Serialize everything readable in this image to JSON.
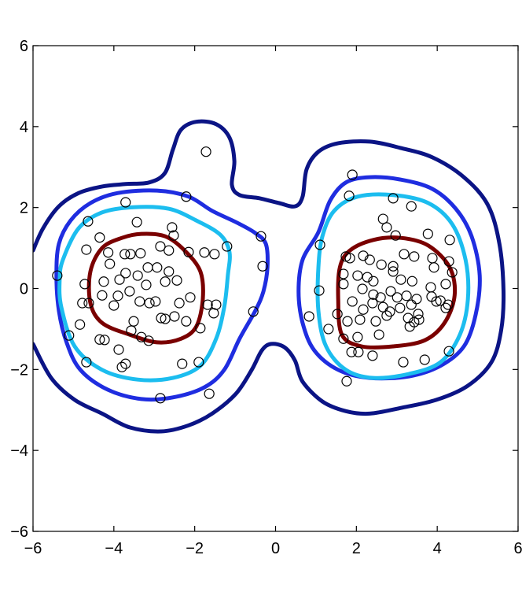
{
  "chart_data": {
    "type": "contour",
    "xlim": [
      -6,
      6
    ],
    "ylim": [
      -6,
      6
    ],
    "xticks": [
      {
        "value": -6,
        "label": "−6"
      },
      {
        "value": -4,
        "label": "−4"
      },
      {
        "value": -2,
        "label": "−2"
      },
      0,
      2,
      4,
      6
    ],
    "yticks": [
      {
        "value": -6,
        "label": "−6"
      },
      {
        "value": -4,
        "label": "−4"
      },
      {
        "value": -2,
        "label": "−2"
      },
      0,
      2,
      4,
      6
    ],
    "contours": [
      {
        "color": "#0b1485",
        "closed": false,
        "x": [
          -6.0,
          -5.75,
          -5.36,
          -4.87,
          -4.29,
          -3.71,
          -3.13,
          -2.74,
          -2.54,
          -2.34,
          -1.96,
          -1.47,
          -1.14,
          -1.02,
          -1.08,
          -0.89,
          -0.4,
          0.09,
          0.48,
          0.67,
          0.77,
          1.06,
          1.55,
          2.33,
          3.1,
          3.88,
          4.66,
          5.25,
          5.54,
          5.64,
          5.58,
          5.34,
          4.76,
          3.98,
          3.1,
          2.33,
          1.74,
          1.16,
          0.67,
          0.48,
          0.22,
          -0.11,
          -0.34,
          -0.59,
          -0.98,
          -1.57,
          -2.15,
          -2.83,
          -3.61,
          -4.29,
          -4.97,
          -5.55,
          -6.0
        ],
        "y": [
          0.94,
          1.49,
          2.03,
          2.36,
          2.52,
          2.58,
          2.62,
          2.85,
          3.43,
          3.92,
          4.12,
          4.06,
          3.73,
          3.15,
          2.56,
          2.31,
          2.23,
          2.11,
          2.03,
          2.27,
          2.95,
          3.38,
          3.59,
          3.63,
          3.47,
          3.24,
          2.75,
          2.07,
          1.1,
          -0.07,
          -1.04,
          -1.82,
          -2.4,
          -2.75,
          -2.95,
          -3.09,
          -3.03,
          -2.79,
          -2.3,
          -1.78,
          -1.45,
          -1.37,
          -1.53,
          -2.01,
          -2.6,
          -3.09,
          -3.38,
          -3.53,
          -3.43,
          -3.09,
          -2.75,
          -2.21,
          -1.37
        ]
      },
      {
        "color": "#1f2de0",
        "closed": true,
        "x": [
          -5.36,
          -5.07,
          -4.58,
          -3.9,
          -2.93,
          -2.15,
          -1.57,
          -0.98,
          -0.5,
          -0.24,
          -0.2,
          -0.3,
          -0.5,
          -0.89,
          -1.27,
          -1.76,
          -2.54,
          -3.32,
          -4.15,
          -4.83,
          -5.17,
          -5.36,
          -5.42,
          null,
          1.06,
          1.35,
          1.74,
          2.33,
          3.1,
          3.88,
          4.46,
          4.85,
          5.05,
          4.95,
          4.66,
          4.08,
          3.3,
          2.33,
          1.55,
          0.96,
          0.67,
          0.57,
          0.67
        ],
        "y": [
          1.1,
          1.68,
          2.11,
          2.36,
          2.42,
          2.27,
          1.92,
          1.64,
          1.37,
          1.1,
          0.52,
          -0.07,
          -0.55,
          -1.24,
          -2.01,
          -2.44,
          -2.69,
          -2.73,
          -2.5,
          -2.01,
          -1.33,
          -0.55,
          0.32,
          null,
          1.39,
          2.17,
          2.62,
          2.75,
          2.69,
          2.46,
          1.97,
          1.29,
          0.32,
          -0.65,
          -1.43,
          -1.91,
          -2.17,
          -2.21,
          -2.01,
          -1.53,
          -0.85,
          -0.07,
          0.71
        ]
      },
      {
        "color": "#1cbdef",
        "closed": true,
        "x": [
          -5.26,
          -4.87,
          -4.29,
          -3.51,
          -2.64,
          -1.96,
          -1.37,
          -1.14,
          -1.18,
          -1.27,
          -1.47,
          -1.86,
          -2.54,
          -3.41,
          -4.29,
          -4.97,
          -5.3,
          -5.34,
          null,
          1.16,
          1.45,
          2.03,
          2.91,
          3.78,
          4.37,
          4.7,
          4.76,
          4.56,
          4.08,
          3.3,
          2.42,
          1.74,
          1.25,
          1.06,
          1.06
        ],
        "y": [
          0.71,
          1.49,
          1.88,
          2.01,
          1.97,
          1.68,
          1.33,
          0.9,
          0.32,
          -0.46,
          -1.24,
          -1.91,
          -2.21,
          -2.25,
          -2.01,
          -1.43,
          -0.46,
          0.22,
          null,
          1.29,
          1.92,
          2.27,
          2.31,
          2.11,
          1.59,
          0.71,
          -0.26,
          -1.14,
          -1.82,
          -2.11,
          -2.21,
          -2.01,
          -1.43,
          -0.55,
          0.52
        ]
      },
      {
        "color": "#7a0000",
        "closed": true,
        "x": [
          -4.58,
          -4.29,
          -3.8,
          -3.32,
          -2.73,
          -2.25,
          -1.86,
          -1.8,
          -1.96,
          -2.34,
          -2.93,
          -3.61,
          -4.29,
          -4.58,
          null,
          1.59,
          1.84,
          2.42,
          3.1,
          3.78,
          4.31,
          4.43,
          4.18,
          3.69,
          2.91,
          2.13,
          1.64,
          1.55
        ],
        "y": [
          0.42,
          1.0,
          1.25,
          1.35,
          1.29,
          0.94,
          0.42,
          -0.26,
          -0.94,
          -1.24,
          -1.33,
          -1.14,
          -0.85,
          -0.36,
          null,
          0.52,
          0.94,
          1.2,
          1.25,
          1.06,
          0.52,
          -0.17,
          -0.85,
          -1.28,
          -1.43,
          -1.43,
          -1.14,
          -0.26
        ]
      }
    ],
    "points": {
      "color": "#000000",
      "x": [
        -1.72,
        -2.21,
        -3.71,
        -4.64,
        -4.35,
        -3.43,
        -2.56,
        -2.52,
        -4.68,
        -4.14,
        -3.73,
        -3.59,
        -3.34,
        -2.85,
        -2.64,
        -2.15,
        -1.76,
        -1.51,
        -1.2,
        -0.36,
        -0.32,
        -0.55,
        -5.4,
        -4.72,
        -4.1,
        -3.71,
        -4.25,
        -3.86,
        -3.41,
        -3.16,
        -2.93,
        -2.64,
        -2.44,
        -2.73,
        -3.2,
        -3.61,
        -3.9,
        -4.29,
        -4.62,
        -4.78,
        -4.0,
        -3.36,
        -2.97,
        -2.11,
        -2.38,
        -1.68,
        -1.47,
        -1.53,
        -1.86,
        -2.21,
        -2.5,
        -2.83,
        -3.12,
        -3.51,
        -3.57,
        -3.32,
        -3.14,
        -2.73,
        -4.84,
        -5.11,
        -4.35,
        -4.23,
        -3.88,
        -3.71,
        -3.8,
        -4.68,
        -2.31,
        -1.9,
        -2.85,
        -1.64,
        1.9,
        1.82,
        2.91,
        2.66,
        3.36,
        2.75,
        2.97,
        3.77,
        4.31,
        1.1,
        1.74,
        1.84,
        2.17,
        2.33,
        2.62,
        2.91,
        3.18,
        3.43,
        3.88,
        4.29,
        3.92,
        4.37,
        1.68,
        2.03,
        2.27,
        2.42,
        2.91,
        3.1,
        3.38,
        3.84,
        4.21,
        1.08,
        1.68,
        2.15,
        2.42,
        2.6,
        2.85,
        3.01,
        3.24,
        3.49,
        3.86,
        4.08,
        4.27,
        1.9,
        2.17,
        2.4,
        2.66,
        2.83,
        3.08,
        3.36,
        3.53,
        3.98,
        4.21,
        0.83,
        1.53,
        1.78,
        2.09,
        2.48,
        2.75,
        3.28,
        3.43,
        3.55,
        3.32,
        1.31,
        1.68,
        2.03,
        2.56,
        1.88,
        2.05,
        2.4,
        3.16,
        3.69,
        4.29,
        1.76
      ],
      "y": [
        3.38,
        2.27,
        2.13,
        1.66,
        1.26,
        1.64,
        1.51,
        1.31,
        0.96,
        0.89,
        0.85,
        0.85,
        0.87,
        1.04,
        0.94,
        0.9,
        0.89,
        0.85,
        1.04,
        1.29,
        0.55,
        -0.57,
        0.32,
        0.11,
        0.61,
        0.38,
        0.17,
        0.22,
        0.32,
        0.52,
        0.52,
        0.42,
        0.2,
        0.17,
        0.09,
        -0.07,
        -0.18,
        -0.17,
        -0.36,
        -0.36,
        -0.42,
        -0.32,
        -0.32,
        -0.22,
        -0.36,
        -0.4,
        -0.4,
        -0.61,
        -0.98,
        -0.81,
        -0.69,
        -0.73,
        -0.36,
        -0.81,
        -1.04,
        -1.2,
        -1.29,
        -0.75,
        -0.89,
        -1.16,
        -1.26,
        -1.27,
        -1.51,
        -1.86,
        -1.94,
        -1.82,
        -1.86,
        -1.82,
        -2.71,
        -2.6,
        2.81,
        2.29,
        2.23,
        1.72,
        2.03,
        1.51,
        1.31,
        1.35,
        1.2,
        1.08,
        0.79,
        0.75,
        0.81,
        0.71,
        0.59,
        0.55,
        0.85,
        0.79,
        0.75,
        0.67,
        0.52,
        0.4,
        0.36,
        0.32,
        0.28,
        0.18,
        0.42,
        0.22,
        0.18,
        0.03,
        0.11,
        -0.05,
        0.11,
        -0.01,
        -0.15,
        -0.22,
        -0.07,
        -0.22,
        -0.18,
        -0.26,
        -0.2,
        -0.3,
        -0.4,
        -0.32,
        -0.52,
        -0.36,
        -0.46,
        -0.57,
        -0.48,
        -0.4,
        -0.63,
        -0.32,
        -0.48,
        -0.69,
        -0.63,
        -0.81,
        -0.77,
        -0.81,
        -0.67,
        -0.73,
        -0.83,
        -0.77,
        -0.94,
        -1.0,
        -1.24,
        -1.2,
        -1.14,
        -1.57,
        -1.57,
        -1.66,
        -1.82,
        -1.76,
        -1.55,
        -2.29
      ]
    }
  }
}
